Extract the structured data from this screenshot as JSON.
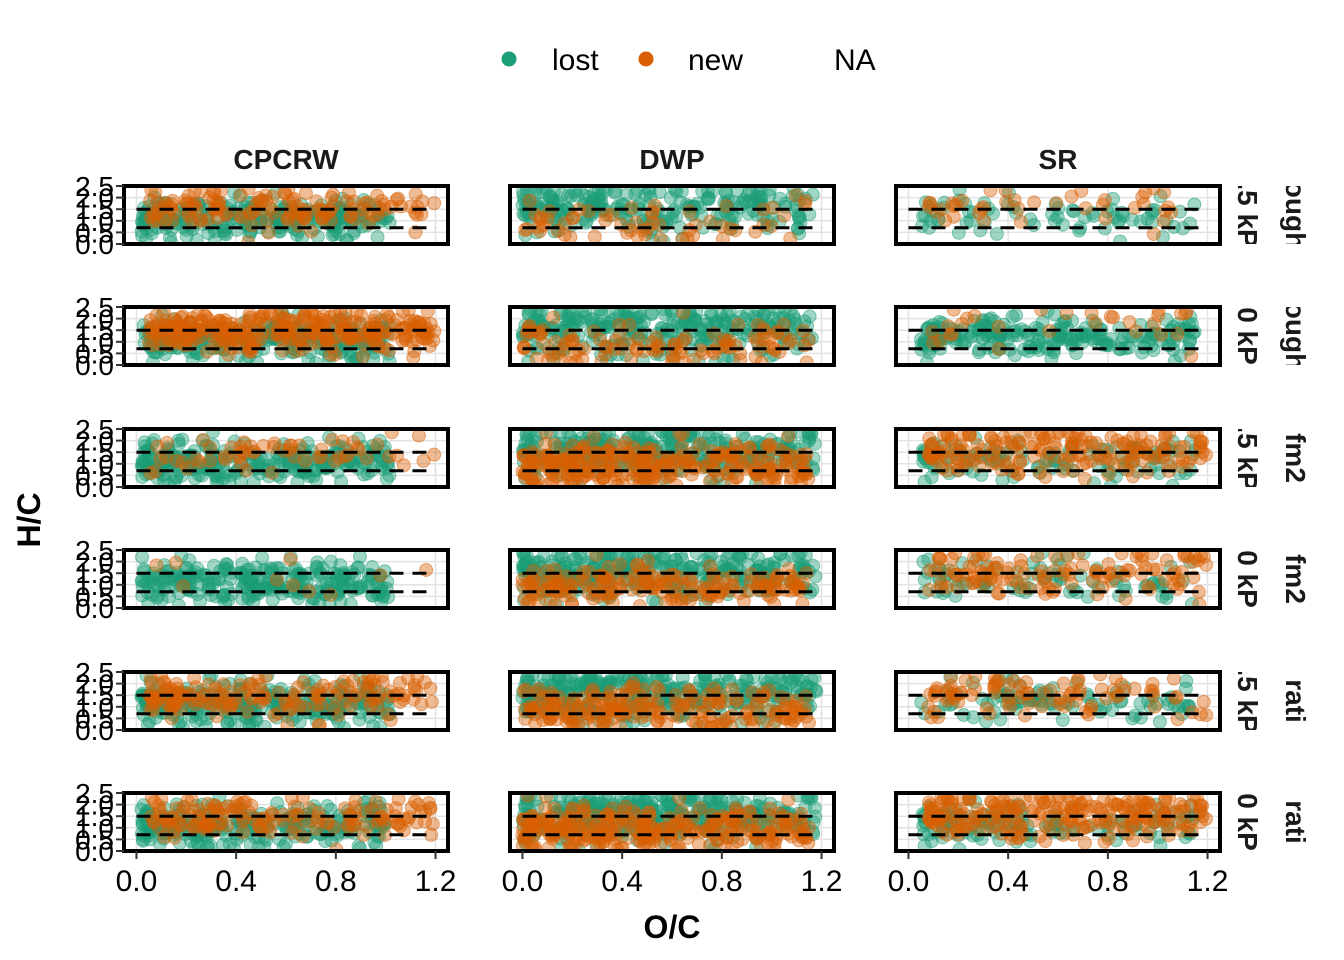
{
  "legend": {
    "items": [
      {
        "label": "lost",
        "color": "#1b9e77"
      },
      {
        "label": "new",
        "color": "#d95f02"
      },
      {
        "label": "NA",
        "color": null
      }
    ],
    "position": "top"
  },
  "chart_data": {
    "type": "scatter",
    "xlabel": "O/C",
    "ylabel": "H/C",
    "xlim": [
      -0.05,
      1.25
    ],
    "ylim": [
      0.0,
      2.5
    ],
    "x_ticks": [
      "0.0",
      "0.4",
      "0.8",
      "1.2"
    ],
    "x_tick_values": [
      0.0,
      0.4,
      0.8,
      1.2
    ],
    "y_ticks": [
      "0.0",
      "0.5",
      "1.0",
      "1.5",
      "2.0",
      "2.5"
    ],
    "y_tick_values": [
      0.0,
      0.5,
      1.0,
      1.5,
      2.0,
      2.5
    ],
    "reference_lines_y": [
      1.5,
      0.7
    ],
    "reference_line_style": "dashed",
    "grid": true,
    "columns": [
      "CPCRW",
      "DWP",
      "SR"
    ],
    "rows": [
      ".5 kP ough",
      "0 kP ough",
      ".5 kP fm2",
      "0 kP fm2",
      ".5 kP rati",
      "0 kP rati"
    ],
    "row_strip_lines": [
      [
        ".5 kP",
        "ough"
      ],
      [
        "0 kP",
        "ough"
      ],
      [
        ".5 kP",
        "fm2"
      ],
      [
        "0 kP",
        "fm2"
      ],
      [
        ".5 kP",
        "rati"
      ],
      [
        "0 kP",
        "rati"
      ]
    ],
    "series": [
      {
        "name": "lost",
        "color": "#1b9e77"
      },
      {
        "name": "new",
        "color": "#d95f02"
      }
    ],
    "point_clusters": {
      "CPCRW": {
        "lost": {
          "x_range": [
            0.02,
            1.02
          ],
          "y_mean": 1.1,
          "y_sd": 0.45
        },
        "new": {
          "x_range": [
            0.05,
            1.2
          ],
          "y_mean": 1.45,
          "y_sd": 0.45
        }
      },
      "DWP": {
        "lost": {
          "x_range": [
            0.0,
            1.18
          ],
          "y_mean": 1.55,
          "y_sd": 0.55
        },
        "new": {
          "x_range": [
            0.0,
            1.15
          ],
          "y_mean": 0.9,
          "y_sd": 0.5
        }
      },
      "SR": {
        "lost": {
          "x_range": [
            0.05,
            1.15
          ],
          "y_mean": 1.2,
          "y_sd": 0.45
        },
        "new": {
          "x_range": [
            0.08,
            1.2
          ],
          "y_mean": 1.55,
          "y_sd": 0.5
        }
      }
    },
    "panels": [
      {
        "row": 0,
        "col": "CPCRW",
        "lost": 240,
        "new": 140
      },
      {
        "row": 0,
        "col": "DWP",
        "lost": 230,
        "new": 60
      },
      {
        "row": 0,
        "col": "SR",
        "lost": 70,
        "new": 40
      },
      {
        "row": 1,
        "col": "CPCRW",
        "lost": 260,
        "new": 300
      },
      {
        "row": 1,
        "col": "DWP",
        "lost": 280,
        "new": 110
      },
      {
        "row": 1,
        "col": "SR",
        "lost": 220,
        "new": 30
      },
      {
        "row": 2,
        "col": "CPCRW",
        "lost": 250,
        "new": 60
      },
      {
        "row": 2,
        "col": "DWP",
        "lost": 300,
        "new": 280
      },
      {
        "row": 2,
        "col": "SR",
        "lost": 110,
        "new": 180
      },
      {
        "row": 3,
        "col": "CPCRW",
        "lost": 260,
        "new": 10
      },
      {
        "row": 3,
        "col": "DWP",
        "lost": 320,
        "new": 180
      },
      {
        "row": 3,
        "col": "SR",
        "lost": 80,
        "new": 120
      },
      {
        "row": 4,
        "col": "CPCRW",
        "lost": 260,
        "new": 160
      },
      {
        "row": 4,
        "col": "DWP",
        "lost": 320,
        "new": 200
      },
      {
        "row": 4,
        "col": "SR",
        "lost": 90,
        "new": 90
      },
      {
        "row": 5,
        "col": "CPCRW",
        "lost": 260,
        "new": 150
      },
      {
        "row": 5,
        "col": "DWP",
        "lost": 320,
        "new": 280
      },
      {
        "row": 5,
        "col": "SR",
        "lost": 120,
        "new": 230
      }
    ]
  }
}
